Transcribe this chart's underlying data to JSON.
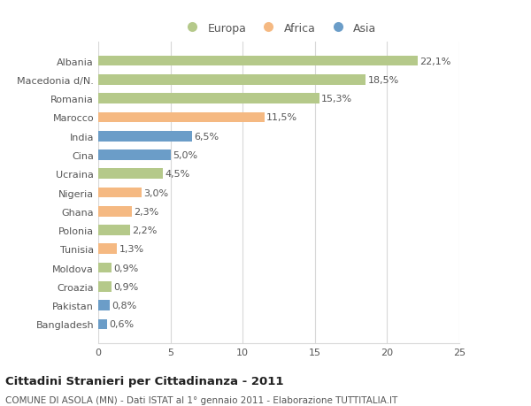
{
  "categories": [
    "Bangladesh",
    "Pakistan",
    "Croazia",
    "Moldova",
    "Tunisia",
    "Polonia",
    "Ghana",
    "Nigeria",
    "Ucraina",
    "Cina",
    "India",
    "Marocco",
    "Romania",
    "Macedonia d/N.",
    "Albania"
  ],
  "values": [
    0.6,
    0.8,
    0.9,
    0.9,
    1.3,
    2.2,
    2.3,
    3.0,
    4.5,
    5.0,
    6.5,
    11.5,
    15.3,
    18.5,
    22.1
  ],
  "labels": [
    "0,6%",
    "0,8%",
    "0,9%",
    "0,9%",
    "1,3%",
    "2,2%",
    "2,3%",
    "3,0%",
    "4,5%",
    "5,0%",
    "6,5%",
    "11,5%",
    "15,3%",
    "18,5%",
    "22,1%"
  ],
  "colors": [
    "#6b9dc8",
    "#6b9dc8",
    "#b5c98a",
    "#b5c98a",
    "#f5b982",
    "#b5c98a",
    "#f5b982",
    "#f5b982",
    "#b5c98a",
    "#6b9dc8",
    "#6b9dc8",
    "#f5b982",
    "#b5c98a",
    "#b5c98a",
    "#b5c98a"
  ],
  "legend_labels": [
    "Europa",
    "Africa",
    "Asia"
  ],
  "legend_colors": [
    "#b5c98a",
    "#f5b982",
    "#6b9dc8"
  ],
  "xlim": [
    0,
    25
  ],
  "xticks": [
    0,
    5,
    10,
    15,
    20,
    25
  ],
  "title": "Cittadini Stranieri per Cittadinanza - 2011",
  "subtitle": "COMUNE DI ASOLA (MN) - Dati ISTAT al 1° gennaio 2011 - Elaborazione TUTTITALIA.IT",
  "background_color": "#ffffff",
  "grid_color": "#d8d8d8",
  "bar_height": 0.55,
  "text_color": "#555555",
  "title_fontsize": 9.5,
  "subtitle_fontsize": 7.5,
  "label_fontsize": 8,
  "tick_fontsize": 8,
  "value_fontsize": 8
}
